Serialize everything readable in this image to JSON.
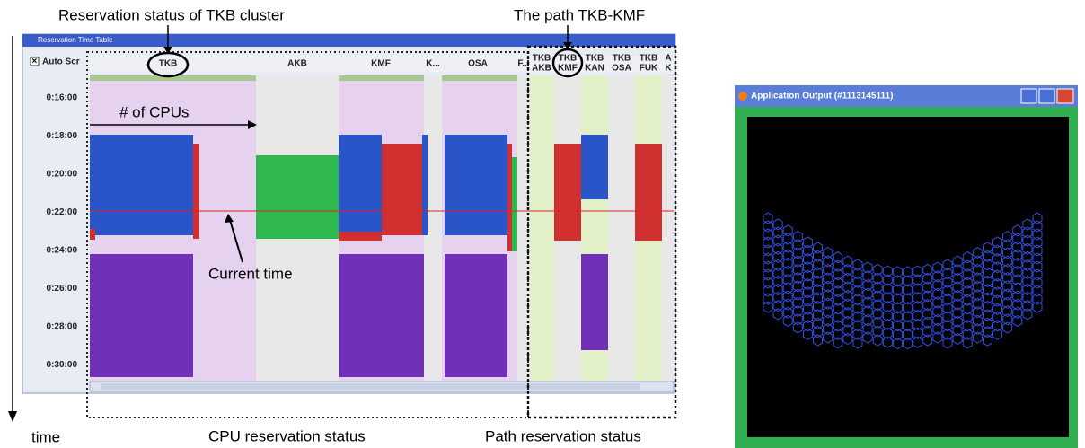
{
  "annotations": {
    "cluster_status": "Reservation status of TKB cluster",
    "path": "The path TKB-KMF",
    "cpus": "# of CPUs",
    "current_time": "Current time",
    "time_axis": "time",
    "cpu_caption": "CPU reservation status",
    "path_caption": "Path reservation status"
  },
  "time_table": {
    "title": "Reservation Time Table",
    "auto_scroll": "Auto Scr",
    "cpu_columns": [
      "TKB",
      "AKB",
      "KMF",
      "K...",
      "OSA",
      "F..."
    ],
    "path_columns": [
      [
        "TKB",
        "AKB"
      ],
      [
        "TKB",
        "KMF"
      ],
      [
        "TKB",
        "KAN"
      ],
      [
        "TKB",
        "OSA"
      ],
      [
        "TKB",
        "FUK"
      ],
      [
        "A",
        "K"
      ]
    ],
    "times": [
      "0:16:00",
      "0:18:00",
      "0:20:00",
      "0:22:00",
      "0:24:00",
      "0:26:00",
      "0:28:00",
      "0:30:00"
    ]
  },
  "output_window": {
    "title": "Application Output (#1113145111)"
  }
}
